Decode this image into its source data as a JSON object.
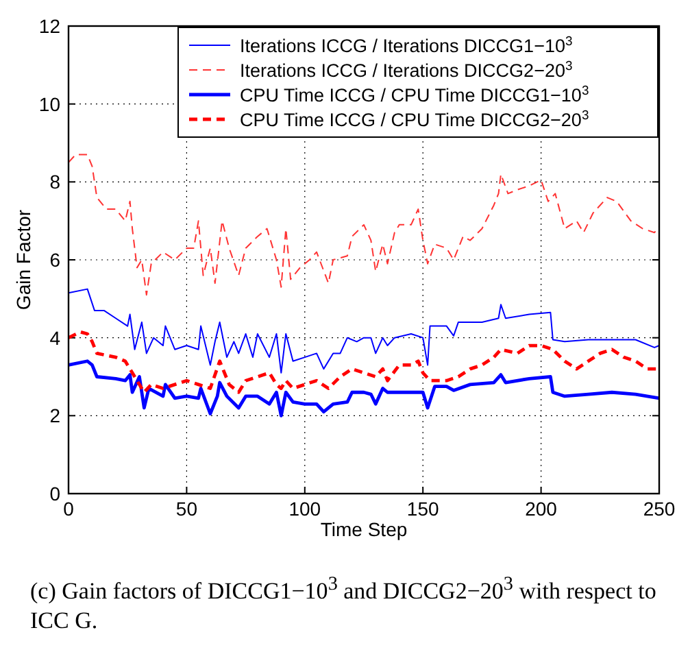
{
  "chart_data": {
    "type": "line",
    "xlabel": "Time Step",
    "ylabel": "Gain Factor",
    "xlim": [
      0,
      250
    ],
    "ylim": [
      0,
      12
    ],
    "xticks": [
      0,
      50,
      100,
      150,
      200,
      250
    ],
    "yticks": [
      0,
      2,
      4,
      6,
      8,
      10,
      12
    ],
    "grid": true,
    "legend": "top right",
    "annotations": [
      "(c) Gain factors of DICCG1−10$^{3}$ and DICCG2−20$^{3}$ with respect to ICC G."
    ],
    "series": [
      {
        "name": "Iterations ICCG / Iterations DICCG1−10$^{3}$",
        "color": "#0000ff",
        "line_style": "solid",
        "x": [
          0,
          8,
          11,
          15,
          20,
          25,
          26,
          28,
          31,
          33,
          36,
          40,
          41,
          45,
          50,
          55,
          56,
          60,
          62,
          64,
          67,
          70,
          72,
          75,
          78,
          80,
          85,
          88,
          90,
          92,
          95,
          100,
          105,
          108,
          112,
          115,
          118,
          122,
          125,
          128,
          130,
          133,
          135,
          138,
          145,
          150,
          152,
          153,
          160,
          163,
          165,
          175,
          182,
          183,
          185,
          195,
          204,
          205,
          210,
          220,
          230,
          240,
          248,
          250
        ],
        "values": [
          5.15,
          5.25,
          4.7,
          4.7,
          4.5,
          4.3,
          4.6,
          3.7,
          4.4,
          3.6,
          4.0,
          3.8,
          4.3,
          3.7,
          3.8,
          3.7,
          4.3,
          3.3,
          3.9,
          4.4,
          3.5,
          3.9,
          3.6,
          4.1,
          3.5,
          4.1,
          3.5,
          4.1,
          3.1,
          4.1,
          3.4,
          3.5,
          3.6,
          3.2,
          3.6,
          3.6,
          4.0,
          3.9,
          4.0,
          4.0,
          3.6,
          4.0,
          3.8,
          4.0,
          4.1,
          4.0,
          3.3,
          4.3,
          4.3,
          4.05,
          4.4,
          4.4,
          4.5,
          4.85,
          4.5,
          4.6,
          4.65,
          3.95,
          3.9,
          3.95,
          3.95,
          3.95,
          3.75,
          3.8
        ]
      },
      {
        "name": "Iterations ICCG / Iterations DICCG2−20$^{3}$",
        "color": "#ff3333",
        "line_style": "dashed",
        "x": [
          0,
          3,
          8,
          10,
          12,
          16,
          20,
          24,
          26,
          27,
          29,
          31,
          33,
          35,
          40,
          45,
          50,
          53,
          55,
          57,
          60,
          62,
          65,
          68,
          72,
          75,
          80,
          84,
          88,
          90,
          92,
          94,
          98,
          102,
          105,
          110,
          112,
          118,
          120,
          125,
          128,
          130,
          133,
          135,
          138,
          140,
          145,
          148,
          150,
          152,
          155,
          160,
          163,
          167,
          170,
          175,
          180,
          182,
          183,
          186,
          190,
          195,
          200,
          203,
          206,
          210,
          215,
          218,
          222,
          228,
          232,
          238,
          243,
          248,
          250
        ],
        "values": [
          8.5,
          8.7,
          8.7,
          8.4,
          7.6,
          7.3,
          7.3,
          7.0,
          7.5,
          6.8,
          5.8,
          6.0,
          5.1,
          5.9,
          6.2,
          6.0,
          6.3,
          6.3,
          7.0,
          5.6,
          6.3,
          5.4,
          7.0,
          6.3,
          5.6,
          6.3,
          6.6,
          6.8,
          6.0,
          5.3,
          6.8,
          5.5,
          5.8,
          6.0,
          6.2,
          5.4,
          6.0,
          6.1,
          6.6,
          6.9,
          6.5,
          5.7,
          6.4,
          5.9,
          6.7,
          6.9,
          6.9,
          7.3,
          6.5,
          5.9,
          6.4,
          6.3,
          6.0,
          6.6,
          6.5,
          6.8,
          7.4,
          7.7,
          8.2,
          7.7,
          7.8,
          7.9,
          8.05,
          7.5,
          7.7,
          6.8,
          7.0,
          6.7,
          7.2,
          7.6,
          7.5,
          7.0,
          6.8,
          6.7,
          6.85
        ]
      },
      {
        "name": "CPU Time ICCG / CPU Time DICCG1−10$^{3}$",
        "color": "#0000ff",
        "line_style": "solid",
        "x": [
          0,
          8,
          10,
          12,
          20,
          24,
          26,
          27,
          30,
          32,
          34,
          40,
          41,
          45,
          50,
          55,
          56,
          60,
          63,
          64,
          67,
          72,
          75,
          80,
          85,
          88,
          90,
          92,
          95,
          100,
          105,
          108,
          112,
          118,
          120,
          125,
          128,
          130,
          133,
          135,
          138,
          145,
          150,
          152,
          155,
          160,
          163,
          170,
          180,
          183,
          185,
          195,
          204,
          205,
          210,
          220,
          230,
          240,
          250
        ],
        "values": [
          3.3,
          3.4,
          3.3,
          3.0,
          2.95,
          2.9,
          3.05,
          2.6,
          3.0,
          2.2,
          2.7,
          2.5,
          2.8,
          2.45,
          2.5,
          2.45,
          2.7,
          2.05,
          2.5,
          2.85,
          2.5,
          2.2,
          2.5,
          2.5,
          2.3,
          2.6,
          2.0,
          2.6,
          2.35,
          2.3,
          2.3,
          2.1,
          2.3,
          2.35,
          2.6,
          2.6,
          2.55,
          2.3,
          2.7,
          2.6,
          2.6,
          2.6,
          2.6,
          2.2,
          2.75,
          2.75,
          2.65,
          2.8,
          2.85,
          3.05,
          2.85,
          2.95,
          3.0,
          2.6,
          2.5,
          2.55,
          2.6,
          2.55,
          2.45
        ]
      },
      {
        "name": "CPU Time ICCG / CPU Time DICCG2−20$^{3}$",
        "color": "#ff0000",
        "line_style": "dashed",
        "x": [
          0,
          5,
          8,
          10,
          12,
          20,
          24,
          27,
          30,
          32,
          35,
          40,
          45,
          50,
          55,
          60,
          64,
          68,
          72,
          75,
          80,
          85,
          88,
          90,
          92,
          95,
          100,
          105,
          110,
          115,
          120,
          125,
          130,
          133,
          135,
          140,
          145,
          148,
          150,
          153,
          160,
          165,
          170,
          175,
          180,
          183,
          190,
          195,
          200,
          205,
          210,
          215,
          220,
          225,
          230,
          235,
          240,
          245,
          250
        ],
        "values": [
          4.0,
          4.15,
          4.1,
          3.9,
          3.6,
          3.5,
          3.4,
          3.1,
          2.8,
          2.6,
          2.8,
          2.7,
          2.8,
          2.9,
          2.8,
          2.7,
          3.4,
          2.8,
          2.6,
          2.9,
          3.0,
          3.1,
          2.8,
          2.7,
          2.9,
          2.7,
          2.8,
          2.9,
          2.7,
          3.0,
          3.2,
          3.1,
          3.0,
          3.2,
          2.9,
          3.3,
          3.3,
          3.4,
          3.1,
          2.9,
          2.9,
          3.0,
          3.2,
          3.3,
          3.5,
          3.7,
          3.6,
          3.8,
          3.8,
          3.7,
          3.4,
          3.2,
          3.4,
          3.6,
          3.7,
          3.5,
          3.4,
          3.2,
          3.2
        ]
      }
    ]
  }
}
